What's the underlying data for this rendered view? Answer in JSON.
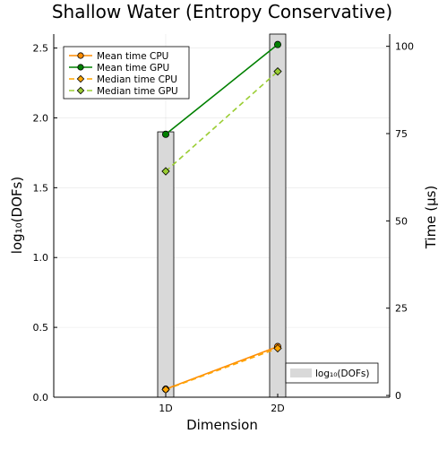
{
  "chart_data": {
    "type": "bar+line",
    "title": "Shallow Water (Entropy Conservative)",
    "xlabel": "Dimension",
    "ylabel_left": "log₁₀(DOFs)",
    "ylabel_right": "Time (μs)",
    "categories": [
      "1D",
      "2D"
    ],
    "left_axis": {
      "ylim": [
        0,
        2.6
      ],
      "ticks": [
        0.0,
        0.5,
        1.0,
        1.5,
        2.0,
        2.5
      ],
      "tick_labels": [
        "0.0",
        "0.5",
        "1.0",
        "1.5",
        "2.0",
        "2.5"
      ]
    },
    "right_axis": {
      "ylim": [
        -0.5,
        103.5
      ],
      "ticks": [
        0,
        25,
        50,
        75,
        100
      ],
      "tick_labels": [
        "0",
        "25",
        "50",
        "75",
        "100"
      ]
    },
    "bars": {
      "name": "log₁₀(DOFs)",
      "color": "#d9d9d9",
      "values": [
        1.9,
        2.6
      ]
    },
    "series": [
      {
        "name": "Mean time CPU",
        "color": "#ff8c00",
        "line": "solid",
        "marker": "circle",
        "values": [
          1.8,
          14.0
        ]
      },
      {
        "name": "Mean time GPU",
        "color": "#008000",
        "line": "solid",
        "marker": "circle",
        "values": [
          74.8,
          100.5
        ]
      },
      {
        "name": "Median time CPU",
        "color": "#ffa500",
        "line": "dashed",
        "marker": "diamond",
        "values": [
          1.7,
          13.5
        ]
      },
      {
        "name": "Median time GPU",
        "color": "#9acd32",
        "line": "dashed",
        "marker": "diamond",
        "values": [
          64.2,
          92.8
        ]
      }
    ],
    "legend_lines_position": "top-left",
    "legend_bars_position": "bottom-right",
    "grid": true
  }
}
